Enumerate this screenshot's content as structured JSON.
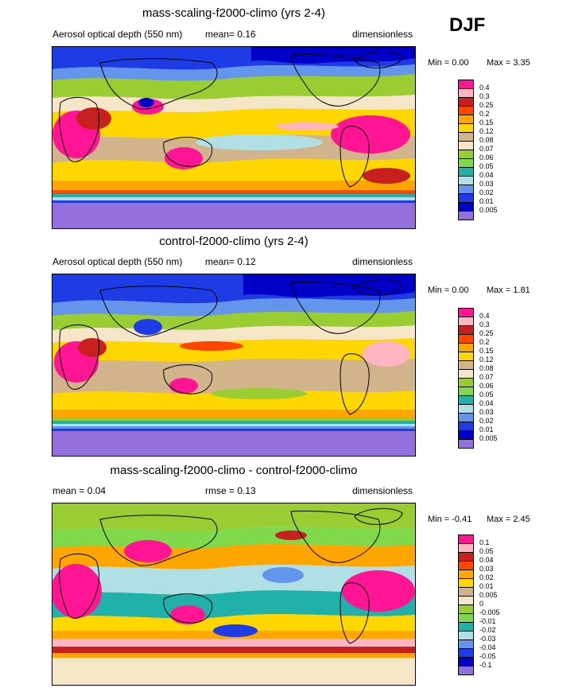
{
  "season": "DJF",
  "panels": [
    {
      "title": "mass-scaling-f2000-climo (yrs 2-4)",
      "left_text": "Aerosol optical depth (550 nm)",
      "mid_text": "mean=  0.16",
      "right_text": "dimensionless",
      "min_text": "Min =  0.00",
      "max_text": "Max =  3.35",
      "legend_labels": [
        "0.4",
        "0.3",
        "0.25",
        "0.2",
        "0.15",
        "0.12",
        "0.08",
        "0.07",
        "0.06",
        "0.05",
        "0.04",
        "0.03",
        "0.02",
        "0.01",
        "0.005"
      ],
      "legend_colors": [
        "#ff1493",
        "#ffb6c1",
        "#c8201e",
        "#ff4500",
        "#ffa500",
        "#ffd700",
        "#d2b48c",
        "#f5e6c8",
        "#9acd32",
        "#7fd94a",
        "#20b2aa",
        "#b0e0e6",
        "#6495ed",
        "#1e3ce6",
        "#0000c8",
        "#9370db"
      ]
    },
    {
      "title": "control-f2000-climo (yrs 2-4)",
      "left_text": "Aerosol optical depth (550 nm)",
      "mid_text": "mean=  0.12",
      "right_text": "dimensionless",
      "min_text": "Min =  0.00",
      "max_text": "Max =  1.81",
      "legend_labels": [
        "0.4",
        "0.3",
        "0.25",
        "0.2",
        "0.15",
        "0.12",
        "0.08",
        "0.07",
        "0.06",
        "0.05",
        "0.04",
        "0.03",
        "0.02",
        "0.01",
        "0.005"
      ],
      "legend_colors": [
        "#ff1493",
        "#ffb6c1",
        "#c8201e",
        "#ff4500",
        "#ffa500",
        "#ffd700",
        "#d2b48c",
        "#f5e6c8",
        "#9acd32",
        "#7fd94a",
        "#20b2aa",
        "#b0e0e6",
        "#6495ed",
        "#1e3ce6",
        "#0000c8",
        "#9370db"
      ]
    },
    {
      "title": "mass-scaling-f2000-climo - control-f2000-climo",
      "left_text": "mean =   0.04",
      "mid_text": "rmse =   0.13",
      "right_text": "dimensionless",
      "min_text": "Min =  -0.41",
      "max_text": "Max =   2.45",
      "legend_labels": [
        "0.1",
        "0.05",
        "0.04",
        "0.03",
        "0.02",
        "0.01",
        "0.005",
        "0",
        "-0.005",
        "-0.01",
        "-0.02",
        "-0.03",
        "-0.04",
        "-0.05",
        "-0.1"
      ],
      "legend_colors": [
        "#ff1493",
        "#ffb6c1",
        "#c8201e",
        "#ff4500",
        "#ffa500",
        "#ffd700",
        "#d2b48c",
        "#f5e6c8",
        "#9acd32",
        "#7fd94a",
        "#20b2aa",
        "#b0e0e6",
        "#6495ed",
        "#1e3ce6",
        "#0000c8",
        "#9370db"
      ]
    }
  ]
}
